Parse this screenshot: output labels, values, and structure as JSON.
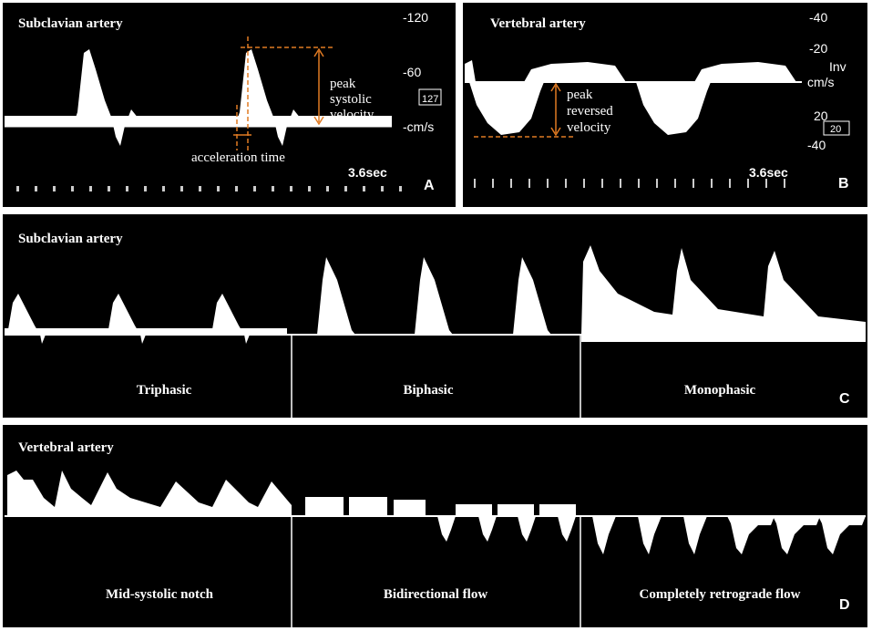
{
  "panels": {
    "a": {
      "title": "Subclavian artery",
      "scale": [
        "-120",
        "-60",
        "127",
        "-cm/s"
      ],
      "annotation": {
        "peak": [
          "peak",
          "systolic",
          "velocity"
        ],
        "acceleration": "acceleration time"
      },
      "duration": "3.6sec",
      "letter": "A"
    },
    "b": {
      "title": "Vertebral artery",
      "scale": [
        "-40",
        "-20",
        "Inv",
        "cm/s",
        "20",
        "20",
        "-40"
      ],
      "annotation": [
        "peak",
        "reversed",
        "velocity"
      ],
      "duration": "3.6sec",
      "letter": "B"
    },
    "c": {
      "title": "Subclavian artery",
      "labels": [
        "Triphasic",
        "Biphasic",
        "Monophasic"
      ],
      "letter": "C"
    },
    "d": {
      "title": "Vertebral artery",
      "labels": [
        "Mid-systolic notch",
        "Bidirectional flow",
        "Completely retrograde flow"
      ],
      "letter": "D"
    }
  }
}
